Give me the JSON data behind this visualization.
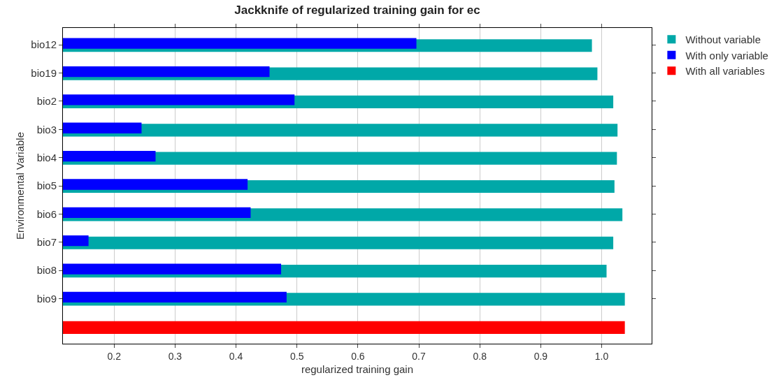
{
  "chart_data": {
    "type": "bar",
    "orientation": "horizontal",
    "title": "Jackknife of regularized training gain for ec",
    "xlabel": "regularized training gain",
    "ylabel": "Environmental Variable",
    "categories": [
      "bio12",
      "bio19",
      "bio2",
      "bio3",
      "bio4",
      "bio5",
      "bio6",
      "bio7",
      "bio8",
      "bio9",
      null
    ],
    "series": [
      {
        "name": "Without variable",
        "color": "#00a8a8",
        "values": [
          0.984,
          0.993,
          1.019,
          1.026,
          1.025,
          1.021,
          1.034,
          1.019,
          1.008,
          1.038,
          null
        ]
      },
      {
        "name": "With only variable",
        "color": "#0000ff",
        "values": [
          0.696,
          0.455,
          0.496,
          0.245,
          0.268,
          0.419,
          0.424,
          0.158,
          0.474,
          0.483,
          null
        ]
      },
      {
        "name": "With all variables",
        "color": "#ff0000",
        "values": [
          null,
          null,
          null,
          null,
          null,
          null,
          null,
          null,
          null,
          null,
          1.038
        ]
      }
    ],
    "xlim": [
      0.116,
      1.082
    ],
    "xticks": [
      0.2,
      0.3,
      0.4,
      0.5,
      0.6,
      0.7,
      0.8,
      0.9,
      {
        "value": 1.0,
        "label": "1.0"
      }
    ],
    "grid": "x",
    "legend": "top right"
  }
}
